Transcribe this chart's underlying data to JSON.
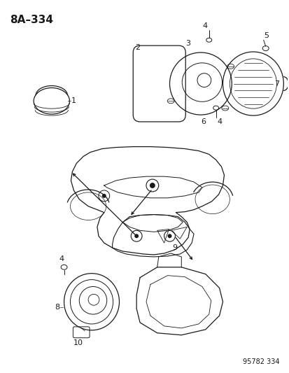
{
  "title": "8A–334",
  "footer": "95782 334",
  "bg_color": "#ffffff",
  "line_color": "#1a1a1a",
  "fig_width": 4.14,
  "fig_height": 5.33,
  "dpi": 100
}
